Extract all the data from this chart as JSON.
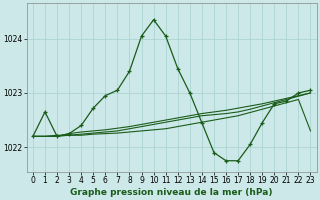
{
  "title": "Graphe pression niveau de la mer (hPa)",
  "background_color": "#cce8e8",
  "grid_color": "#aed4d4",
  "line_color_main": "#1a5c1a",
  "line_color_smooth": "#1a5c1a",
  "xlim": [
    -0.5,
    23.5
  ],
  "ylim": [
    1021.55,
    1024.65
  ],
  "yticks": [
    1022,
    1023,
    1024
  ],
  "xticks": [
    0,
    1,
    2,
    3,
    4,
    5,
    6,
    7,
    8,
    9,
    10,
    11,
    12,
    13,
    14,
    15,
    16,
    17,
    18,
    19,
    20,
    21,
    22,
    23
  ],
  "series1_x": [
    0,
    1,
    2,
    3,
    4,
    5,
    6,
    7,
    8,
    9,
    10,
    11,
    12,
    13,
    14,
    15,
    16,
    17,
    18,
    19,
    20,
    21,
    22,
    23
  ],
  "series1_y": [
    1022.2,
    1022.65,
    1022.2,
    1022.25,
    1022.4,
    1022.72,
    1022.95,
    1023.05,
    1023.4,
    1024.05,
    1024.35,
    1024.05,
    1023.45,
    1023.0,
    1022.45,
    1021.9,
    1021.75,
    1021.75,
    1022.05,
    1022.45,
    1022.8,
    1022.85,
    1023.0,
    1023.05
  ],
  "series2_x": [
    0,
    1,
    2,
    3,
    4,
    5,
    6,
    7,
    8,
    9,
    10,
    11,
    12,
    13,
    14,
    15,
    16,
    17,
    18,
    19,
    20,
    21,
    22,
    23
  ],
  "series2_y": [
    1022.2,
    1022.2,
    1022.2,
    1022.25,
    1022.28,
    1022.3,
    1022.32,
    1022.35,
    1022.38,
    1022.42,
    1022.46,
    1022.5,
    1022.54,
    1022.58,
    1022.62,
    1022.65,
    1022.68,
    1022.72,
    1022.76,
    1022.8,
    1022.85,
    1022.9,
    1022.95,
    1023.0
  ],
  "series3_x": [
    0,
    1,
    2,
    3,
    4,
    5,
    6,
    7,
    8,
    9,
    10,
    11,
    12,
    13,
    14,
    15,
    16,
    17,
    18,
    19,
    20,
    21,
    22,
    23
  ],
  "series3_y": [
    1022.2,
    1022.2,
    1022.2,
    1022.22,
    1022.24,
    1022.26,
    1022.28,
    1022.3,
    1022.34,
    1022.38,
    1022.42,
    1022.46,
    1022.5,
    1022.54,
    1022.58,
    1022.6,
    1022.62,
    1022.65,
    1022.7,
    1022.76,
    1022.82,
    1022.88,
    1022.94,
    1023.0
  ],
  "series4_x": [
    0,
    1,
    2,
    3,
    4,
    5,
    6,
    7,
    8,
    9,
    10,
    11,
    12,
    13,
    14,
    15,
    16,
    17,
    18,
    19,
    20,
    21,
    22,
    23
  ],
  "series4_y": [
    1022.2,
    1022.2,
    1022.22,
    1022.22,
    1022.22,
    1022.24,
    1022.25,
    1022.26,
    1022.28,
    1022.3,
    1022.32,
    1022.34,
    1022.38,
    1022.42,
    1022.46,
    1022.5,
    1022.54,
    1022.58,
    1022.64,
    1022.7,
    1022.76,
    1022.82,
    1022.88,
    1022.3
  ],
  "title_fontsize": 6.5,
  "tick_fontsize": 5.5
}
